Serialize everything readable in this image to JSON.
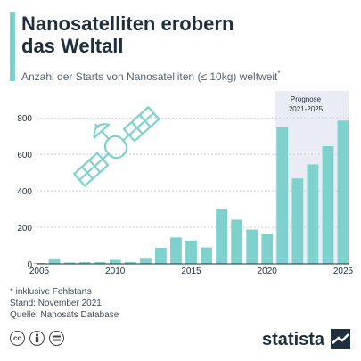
{
  "header": {
    "title_line1": "Nanosatelliten erobern",
    "title_line2": "das Weltall",
    "subtitle": "Anzahl der Starts von Nanosatelliten (≤ 10kg) weltweit",
    "subtitle_mark": "*"
  },
  "forecast_label_line1": "Prognose",
  "forecast_label_line2": "2021-2025",
  "footer": {
    "note": "* inklusive Fehlstarts",
    "stand": "Stand: November 2021",
    "quelle": "Quelle: Nanosats Database"
  },
  "brand": {
    "name": "statista"
  },
  "icons": [
    "cc-icon",
    "attribution-icon",
    "no-derivatives-icon",
    "statista-logo-icon",
    "satellite-icon"
  ],
  "colors": {
    "bar": "#7fd1cd",
    "accent": "#7fd1cd",
    "forecast_bg": "#e9ecf3",
    "text": "#1f2f3d"
  },
  "chart_data": {
    "type": "bar",
    "x": [
      2005,
      2006,
      2007,
      2008,
      2009,
      2010,
      2011,
      2012,
      2013,
      2014,
      2015,
      2016,
      2017,
      2018,
      2019,
      2020,
      2021,
      2022,
      2023,
      2024,
      2025
    ],
    "values": [
      5,
      25,
      8,
      10,
      10,
      22,
      10,
      28,
      88,
      145,
      128,
      90,
      300,
      242,
      188,
      165,
      748,
      468,
      545,
      645,
      785
    ],
    "forecast_from": 2021,
    "ylim": [
      0,
      850
    ],
    "yticks": [
      0,
      200,
      400,
      600,
      800
    ],
    "xticks": [
      2005,
      2010,
      2015,
      2020,
      2025
    ],
    "grid": true
  }
}
